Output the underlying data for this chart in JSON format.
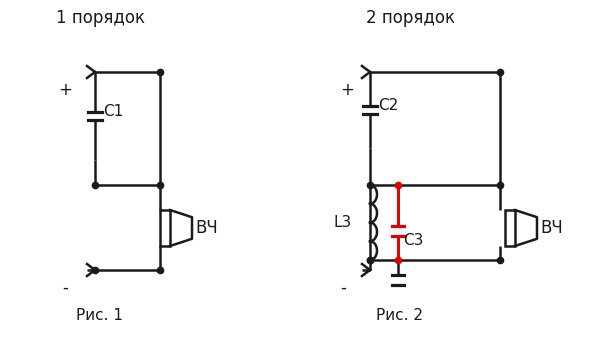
{
  "bg_color": "#ffffff",
  "line_color": "#1a1a1a",
  "red_color": "#dd0000",
  "title1": "1 порядок",
  "title2": "2 порядок",
  "caption1": "Рис. 1",
  "caption2": "Рис. 2",
  "label_plus1": "+",
  "label_minus1": "-",
  "label_plus2": "+",
  "label_minus2": "-",
  "label_C1": "C1",
  "label_C2": "C2",
  "label_L3": "L3",
  "label_C3": "C3",
  "label_VC1": "ВЧ",
  "label_VC2": "ВЧ"
}
